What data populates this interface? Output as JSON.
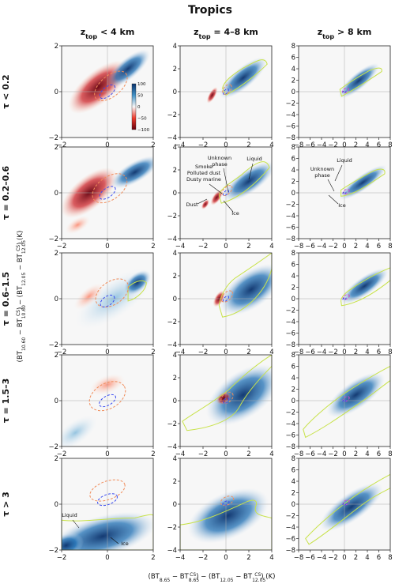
{
  "figure": {
    "title": "Tropics",
    "col_titles": [
      {
        "main": "z",
        "sub": "top",
        "rest": " < 4 km"
      },
      {
        "main": "z",
        "sub": "top",
        "rest": " = 4–8 km"
      },
      {
        "main": "z",
        "sub": "top",
        "rest": " > 8 km"
      }
    ],
    "row_titles": [
      "τ < 0.2",
      "τ = 0.2–0.6",
      "τ = 0.6–1.5",
      "τ = 1.5–3",
      "τ > 3"
    ],
    "ylabel": "(BT10.60 − BT10.60CS) − (BT12.05 − BT12.05CS) (K)",
    "xlabel": "(BT8.65 − BT8.65CS) − (BT12.05 − BT12.05CS) (K)"
  },
  "chart_data": {
    "type": "heatmap",
    "colorbar": {
      "ticks": [
        "100",
        "50",
        "0",
        "−50",
        "−100"
      ],
      "min": -100,
      "max": 100
    },
    "colors": {
      "positive": "#08306b",
      "negative": "#67000d",
      "neutral": "#f7f7f7",
      "contour_green": "#c8e24a",
      "contour_blue": "#3b4cf0",
      "contour_orange": "#f08c5a",
      "contour_magenta": "#d046c8"
    },
    "columns": [
      {
        "xlim": [
          -2,
          2
        ],
        "ylim": [
          -2,
          2
        ],
        "xticks": [
          "−2",
          "0",
          "2"
        ],
        "xtick_vals": [
          -2,
          0,
          2
        ],
        "yticks": [
          "2",
          "0",
          "−2"
        ],
        "ytick_vals": [
          2,
          0,
          -2
        ]
      },
      {
        "xlim": [
          -4,
          4
        ],
        "ylim": [
          -4,
          4
        ],
        "xticks": [
          "−4",
          "−2",
          "0",
          "2",
          "4"
        ],
        "xtick_vals": [
          -4,
          -2,
          0,
          2,
          4
        ],
        "yticks": [
          "4",
          "2",
          "0",
          "−2",
          "−4"
        ],
        "ytick_vals": [
          4,
          2,
          0,
          -2,
          -4
        ]
      },
      {
        "xlim": [
          -8,
          8
        ],
        "ylim": [
          -8,
          8
        ],
        "xticks": [
          "−8",
          "−6",
          "−4",
          "−2",
          "0",
          "2",
          "4",
          "6",
          "8"
        ],
        "xtick_vals": [
          -8,
          -6,
          -4,
          -2,
          0,
          2,
          4,
          6,
          8
        ],
        "yticks": [
          "8",
          "6",
          "4",
          "2",
          "0",
          "−2",
          "−4",
          "−6",
          "−8"
        ],
        "ytick_vals": [
          8,
          6,
          4,
          2,
          0,
          -2,
          -4,
          -6,
          -8
        ]
      }
    ],
    "annotations": [
      {
        "row": 1,
        "col": 1,
        "text": "Smoke"
      },
      {
        "row": 1,
        "col": 1,
        "text": "Polluted dust"
      },
      {
        "row": 1,
        "col": 1,
        "text": "Dusty marine"
      },
      {
        "row": 1,
        "col": 1,
        "text": "Dust"
      },
      {
        "row": 1,
        "col": 1,
        "text": "Unknown"
      },
      {
        "row": 1,
        "col": 1,
        "text": "phase"
      },
      {
        "row": 1,
        "col": 1,
        "text": "Liquid"
      },
      {
        "row": 1,
        "col": 1,
        "text": "Ice"
      },
      {
        "row": 1,
        "col": 2,
        "text": "Liquid"
      },
      {
        "row": 1,
        "col": 2,
        "text": "Unknown"
      },
      {
        "row": 1,
        "col": 2,
        "text": "phase"
      },
      {
        "row": 1,
        "col": 2,
        "text": "Ice"
      },
      {
        "row": 4,
        "col": 0,
        "text": "Liquid"
      },
      {
        "row": 4,
        "col": 0,
        "text": "Ice"
      }
    ]
  }
}
